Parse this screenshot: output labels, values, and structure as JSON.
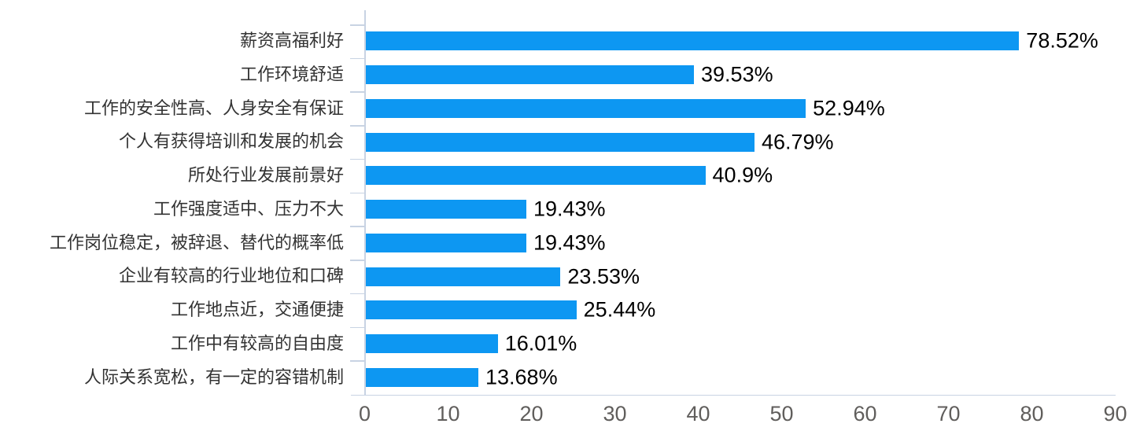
{
  "chart_data": {
    "type": "bar",
    "orientation": "horizontal",
    "title": "",
    "categories": [
      "薪资高福利好",
      "工作环境舒适",
      "工作的安全性高、人身安全有保证",
      "个人有获得培训和发展的机会",
      "所处行业发展前景好",
      "工作强度适中、压力不大",
      "工作岗位稳定，被辞退、替代的概率低",
      "企业有较高的行业地位和口碑",
      "工作地点近，交通便捷",
      "工作中有较高的自由度",
      "人际关系宽松，有一定的容错机制"
    ],
    "values": [
      78.52,
      39.53,
      52.94,
      46.79,
      40.9,
      19.43,
      19.43,
      23.53,
      25.44,
      16.01,
      13.68
    ],
    "data_labels": [
      "78.52%",
      "39.53%",
      "52.94%",
      "46.79%",
      "40.9%",
      "19.43%",
      "19.43%",
      "23.53%",
      "25.44%",
      "16.01%",
      "13.68%"
    ],
    "x_ticks": [
      "0",
      "10",
      "20",
      "30",
      "40",
      "50",
      "60",
      "70",
      "80",
      "90"
    ],
    "x_tick_values": [
      0,
      10,
      20,
      30,
      40,
      50,
      60,
      70,
      80,
      90
    ],
    "xlim": [
      0,
      90
    ],
    "xlabel": "",
    "ylabel": "",
    "grid": false,
    "legend": "none",
    "colors": {
      "bar": "#0d97f2",
      "axis_line": "#c8d3e3",
      "category_label": "#333333",
      "data_label": "#000000",
      "x_tick_label": "#605e5c"
    }
  }
}
